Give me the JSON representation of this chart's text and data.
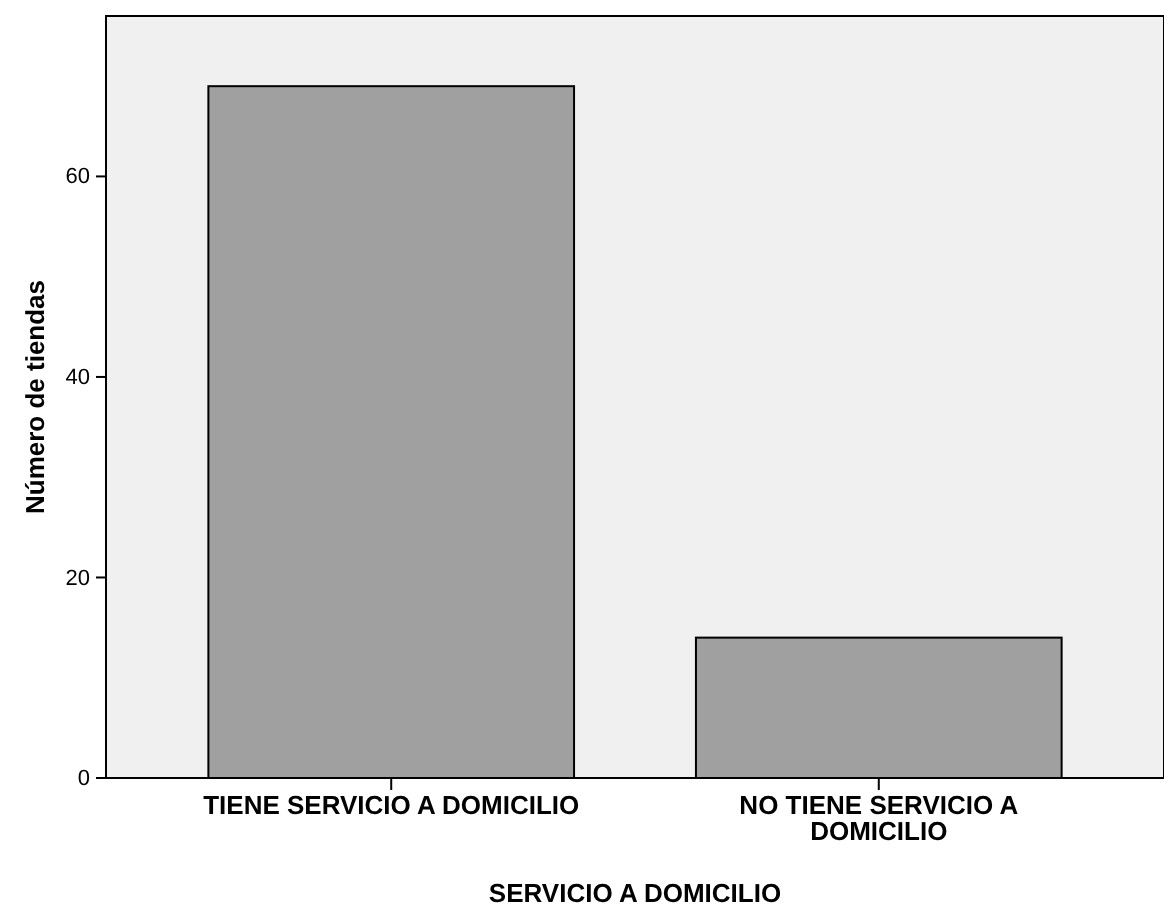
{
  "chart_data": {
    "type": "bar",
    "categories": [
      "TIENE SERVICIO A DOMICILIO",
      "NO TIENE SERVICIO A DOMICILIO"
    ],
    "values": [
      69,
      14
    ],
    "color": "#a0a0a0",
    "xlabel": "SERVICIO A DOMICILIO",
    "ylabel": "Número de tiendas",
    "ylim": [
      0,
      76
    ],
    "yticks": [
      0,
      20,
      40,
      60
    ],
    "grid": false
  }
}
